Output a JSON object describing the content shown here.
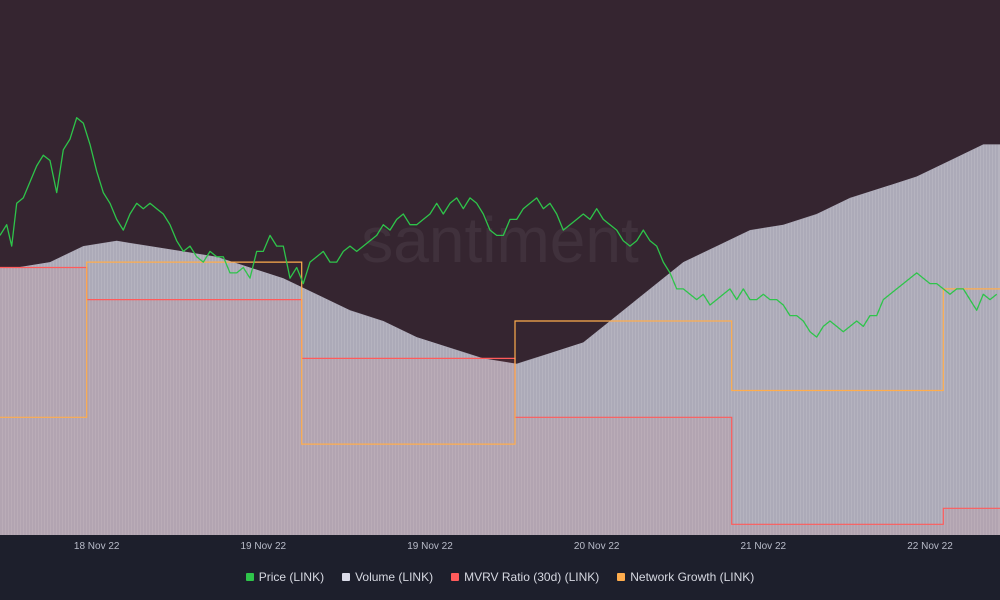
{
  "watermark": "santiment",
  "colors": {
    "page_bg": "#1d1f2c",
    "plot_bg": "#352530",
    "price": "#2ec44a",
    "volume": "#dadbe8",
    "mvrv": "#ff5b5b",
    "network_growth": "#ffad4d"
  },
  "chart_data": {
    "type": "line",
    "title": "",
    "x_tick_labels": [
      "18 Nov 22",
      "19 Nov 22",
      "19 Nov 22",
      "20 Nov 22",
      "21 Nov 22",
      "22 Nov 22"
    ],
    "x_range": [
      0,
      6
    ],
    "x_ticks": [
      0.58,
      1.58,
      2.58,
      3.58,
      4.58,
      5.58
    ],
    "grid": false,
    "legend_position": "bottom",
    "series": [
      {
        "name": "Price (LINK)",
        "type": "line",
        "color": "#2ec44a",
        "x": [
          0.0,
          0.04,
          0.07,
          0.1,
          0.14,
          0.18,
          0.22,
          0.26,
          0.3,
          0.34,
          0.38,
          0.42,
          0.46,
          0.5,
          0.54,
          0.58,
          0.62,
          0.66,
          0.7,
          0.74,
          0.78,
          0.82,
          0.86,
          0.9,
          0.94,
          0.98,
          1.02,
          1.06,
          1.1,
          1.14,
          1.18,
          1.22,
          1.26,
          1.3,
          1.34,
          1.38,
          1.42,
          1.46,
          1.5,
          1.54,
          1.58,
          1.62,
          1.66,
          1.7,
          1.74,
          1.78,
          1.82,
          1.86,
          1.9,
          1.94,
          1.98,
          2.02,
          2.06,
          2.1,
          2.14,
          2.18,
          2.22,
          2.26,
          2.3,
          2.34,
          2.38,
          2.42,
          2.46,
          2.5,
          2.54,
          2.58,
          2.62,
          2.66,
          2.7,
          2.74,
          2.78,
          2.82,
          2.86,
          2.9,
          2.94,
          2.98,
          3.02,
          3.06,
          3.1,
          3.14,
          3.18,
          3.22,
          3.26,
          3.3,
          3.34,
          3.38,
          3.42,
          3.46,
          3.5,
          3.54,
          3.58,
          3.62,
          3.66,
          3.7,
          3.74,
          3.78,
          3.82,
          3.86,
          3.9,
          3.94,
          3.98,
          4.02,
          4.06,
          4.1,
          4.14,
          4.18,
          4.22,
          4.26,
          4.3,
          4.34,
          4.38,
          4.42,
          4.46,
          4.5,
          4.54,
          4.58,
          4.62,
          4.66,
          4.7,
          4.74,
          4.78,
          4.82,
          4.86,
          4.9,
          4.94,
          4.98,
          5.02,
          5.06,
          5.1,
          5.14,
          5.18,
          5.22,
          5.26,
          5.3,
          5.34,
          5.38,
          5.42,
          5.46,
          5.5,
          5.54,
          5.58,
          5.62,
          5.66,
          5.7,
          5.74,
          5.78,
          5.82,
          5.86,
          5.9,
          5.94,
          5.98
        ],
        "values": [
          56,
          58,
          54,
          62,
          63,
          66,
          69,
          71,
          70,
          64,
          72,
          74,
          78,
          77,
          73,
          68,
          64,
          62,
          59,
          57,
          60,
          62,
          61,
          62,
          61,
          60,
          58,
          55,
          53,
          54,
          52,
          51,
          53,
          52,
          52,
          49,
          49,
          50,
          48,
          53,
          53,
          56,
          54,
          54,
          48,
          50,
          47,
          51,
          52,
          53,
          51,
          51,
          53,
          54,
          53,
          54,
          55,
          56,
          58,
          57,
          59,
          60,
          58,
          58,
          59,
          60,
          62,
          60,
          62,
          63,
          61,
          63,
          62,
          60,
          57,
          56,
          56,
          59,
          59,
          61,
          62,
          63,
          61,
          62,
          60,
          57,
          58,
          59,
          60,
          59,
          61,
          59,
          58,
          57,
          55,
          54,
          55,
          57,
          55,
          54,
          51,
          49,
          46,
          46,
          45,
          44,
          45,
          43,
          44,
          45,
          46,
          44,
          46,
          44,
          44,
          45,
          44,
          44,
          43,
          41,
          41,
          40,
          38,
          37,
          39,
          40,
          39,
          38,
          39,
          40,
          39,
          41,
          41,
          44,
          45,
          46,
          47,
          48,
          49,
          48,
          47,
          47,
          46,
          45,
          46,
          46,
          44,
          42,
          45,
          44,
          45
        ]
      },
      {
        "name": "Volume (LINK)",
        "type": "bar",
        "color": "#dadbe8",
        "x": [
          0.1,
          0.3,
          0.5,
          0.7,
          0.9,
          1.1,
          1.3,
          1.5,
          1.7,
          1.9,
          2.1,
          2.3,
          2.5,
          2.7,
          2.9,
          3.1,
          3.3,
          3.5,
          3.7,
          3.9,
          4.1,
          4.3,
          4.5,
          4.7,
          4.9,
          5.1,
          5.3,
          5.5,
          5.7,
          5.9
        ],
        "values": [
          50,
          51,
          54,
          55,
          54,
          53,
          52,
          50,
          48,
          45,
          42,
          40,
          37,
          35,
          33,
          32,
          34,
          36,
          41,
          46,
          51,
          54,
          57,
          58,
          60,
          63,
          65,
          67,
          70,
          73
        ]
      },
      {
        "name": "MVRV Ratio (30d) (LINK)",
        "type": "step",
        "color": "#ff5b5b",
        "x": [
          0.0,
          0.52,
          1.81,
          3.09,
          4.39,
          5.66,
          6.0
        ],
        "values": [
          50,
          44,
          33,
          22,
          2,
          5,
          12
        ]
      },
      {
        "name": "Network Growth (LINK)",
        "type": "step",
        "color": "#ffad4d",
        "x": [
          0.0,
          0.52,
          1.81,
          3.09,
          4.39,
          5.66,
          6.0
        ],
        "values": [
          22,
          51,
          17,
          40,
          27,
          46,
          46
        ]
      }
    ]
  }
}
